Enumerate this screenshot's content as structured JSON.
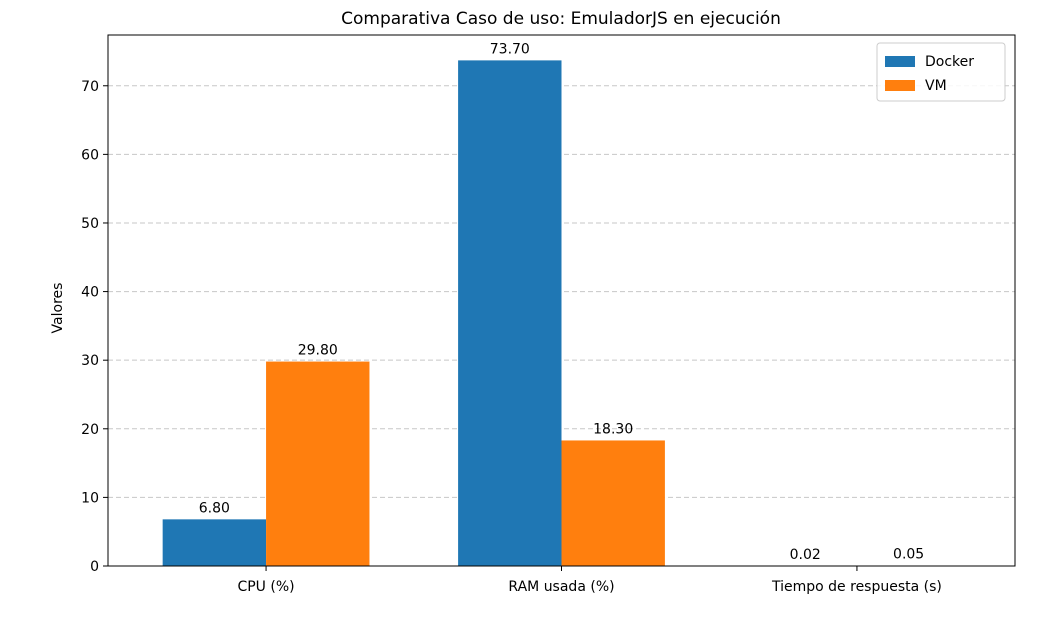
{
  "chart_data": {
    "type": "bar",
    "title": "Comparativa Caso de uso: EmuladorJS en ejecución",
    "xlabel": "",
    "ylabel": "Valores",
    "categories": [
      "CPU (%)",
      "RAM usada (%)",
      "Tiempo de respuesta (s)"
    ],
    "series": [
      {
        "name": "Docker",
        "color": "#1f77b4",
        "values": [
          6.8,
          73.7,
          0.02
        ],
        "labels": [
          "6.80",
          "73.70",
          "0.02"
        ]
      },
      {
        "name": "VM",
        "color": "#ff7f0e",
        "values": [
          29.8,
          18.3,
          0.05
        ],
        "labels": [
          "29.80",
          "18.30",
          "0.05"
        ]
      }
    ],
    "ylim": [
      0,
      77.4
    ],
    "yticks": [
      0,
      10,
      20,
      30,
      40,
      50,
      60,
      70
    ],
    "grid": "y-dashed",
    "legend_position": "top-right"
  }
}
